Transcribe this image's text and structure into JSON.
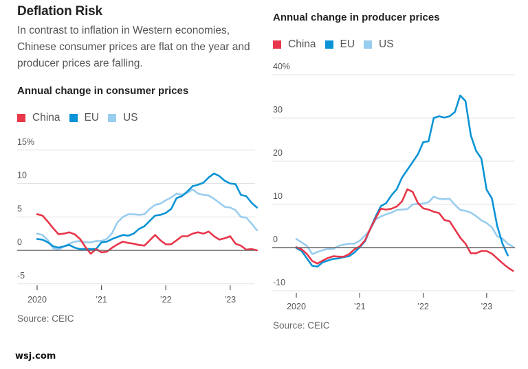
{
  "header": {
    "title": "Deflation Risk",
    "dek": "In contrast to inflation in Western economies, Chinese consumer prices are flat on the year and producer prices are falling."
  },
  "colors": {
    "China": "#e8364a",
    "EU": "#0a93d6",
    "US": "#99cdef"
  },
  "chart_data": [
    {
      "type": "line",
      "title": "Annual change in consumer prices",
      "xlabel": "",
      "ylabel": "",
      "ylim": [
        -5,
        15
      ],
      "yticks": [
        15,
        10,
        5,
        0,
        -5
      ],
      "ytick_labels": [
        "15%",
        "10",
        "5",
        "0",
        "-5"
      ],
      "xticks": [
        "2020",
        "’21",
        "’22",
        "’23"
      ],
      "grid": true,
      "legend": "top-left",
      "source": "Source: CEIC",
      "x_start": "2020-01",
      "x_frequency": "monthly",
      "series": [
        {
          "name": "China",
          "values": [
            5.4,
            5.2,
            4.3,
            3.3,
            2.4,
            2.5,
            2.7,
            2.4,
            1.7,
            0.5,
            -0.5,
            0.2,
            -0.3,
            -0.2,
            0.4,
            0.9,
            1.3,
            1.1,
            1.0,
            0.8,
            0.7,
            1.5,
            2.3,
            1.5,
            0.9,
            0.9,
            1.5,
            2.1,
            2.1,
            2.5,
            2.7,
            2.5,
            2.8,
            2.1,
            1.6,
            1.8,
            2.1,
            1.0,
            0.7,
            0.1,
            0.2,
            0.0
          ]
        },
        {
          "name": "EU",
          "values": [
            1.7,
            1.6,
            1.2,
            0.6,
            0.4,
            0.6,
            0.8,
            0.4,
            0.2,
            0.2,
            0.2,
            0.2,
            1.2,
            1.3,
            1.7,
            2.0,
            2.3,
            2.2,
            2.5,
            3.2,
            3.6,
            4.4,
            5.2,
            5.3,
            5.6,
            6.2,
            7.8,
            8.1,
            8.8,
            9.6,
            9.8,
            10.1,
            10.9,
            11.5,
            11.1,
            10.4,
            10.0,
            9.9,
            8.3,
            8.1,
            7.1,
            6.4
          ]
        },
        {
          "name": "US",
          "values": [
            2.5,
            2.3,
            1.5,
            0.3,
            0.1,
            0.6,
            1.0,
            1.3,
            1.4,
            1.2,
            1.2,
            1.4,
            1.4,
            1.7,
            2.6,
            4.2,
            5.0,
            5.4,
            5.4,
            5.3,
            5.4,
            6.2,
            6.8,
            7.0,
            7.5,
            7.9,
            8.5,
            8.3,
            8.6,
            9.1,
            8.5,
            8.3,
            8.2,
            7.7,
            7.1,
            6.5,
            6.4,
            6.0,
            5.0,
            4.9,
            4.0,
            3.0
          ]
        }
      ]
    },
    {
      "type": "line",
      "title": "Annual change in producer prices",
      "xlabel": "",
      "ylabel": "",
      "ylim": [
        -10,
        40
      ],
      "yticks": [
        40,
        30,
        20,
        10,
        0,
        -10
      ],
      "ytick_labels": [
        "40%",
        "30",
        "20",
        "10",
        "0",
        "-10"
      ],
      "xticks": [
        "2020",
        "’21",
        "’22",
        "’23"
      ],
      "grid": true,
      "legend": "top-left",
      "source": "Source: CEIC",
      "x_start": "2020-01",
      "x_frequency": "monthly",
      "series": [
        {
          "name": "China",
          "values": [
            0.1,
            -0.4,
            -1.5,
            -3.1,
            -3.7,
            -3.0,
            -2.4,
            -2.0,
            -2.1,
            -2.1,
            -1.5,
            -0.4,
            0.3,
            1.7,
            4.4,
            6.8,
            9.0,
            8.8,
            9.0,
            9.5,
            10.7,
            13.5,
            12.9,
            10.3,
            9.1,
            8.8,
            8.3,
            8.0,
            6.4,
            6.1,
            4.2,
            2.3,
            0.9,
            -1.3,
            -1.3,
            -0.8,
            -0.8,
            -1.4,
            -2.5,
            -3.6,
            -4.6,
            -5.4
          ]
        },
        {
          "name": "EU",
          "values": [
            -0.1,
            -0.8,
            -2.5,
            -4.2,
            -4.4,
            -3.4,
            -3.0,
            -2.6,
            -2.5,
            -2.2,
            -2.0,
            -1.1,
            0.1,
            1.5,
            4.4,
            7.2,
            9.6,
            10.3,
            12.1,
            13.5,
            16.2,
            18.0,
            19.8,
            21.6,
            24.4,
            24.6,
            30.0,
            30.4,
            30.1,
            30.4,
            31.4,
            35.2,
            33.9,
            26.0,
            22.4,
            20.6,
            13.4,
            11.4,
            5.0,
            0.9,
            -1.8
          ]
        },
        {
          "name": "US",
          "values": [
            2.0,
            1.2,
            0.4,
            -1.5,
            -1.0,
            -0.6,
            -0.3,
            -0.3,
            0.4,
            0.7,
            0.9,
            0.9,
            1.6,
            2.8,
            4.2,
            6.5,
            7.2,
            7.7,
            8.1,
            8.7,
            8.8,
            8.9,
            10.0,
            10.1,
            10.2,
            10.5,
            11.8,
            11.3,
            11.2,
            11.3,
            9.9,
            8.7,
            8.5,
            8.1,
            7.3,
            6.3,
            5.7,
            4.7,
            2.6,
            2.1,
            0.9,
            0.2
          ]
        }
      ]
    }
  ],
  "footer": {
    "brand": "wsj.com"
  }
}
